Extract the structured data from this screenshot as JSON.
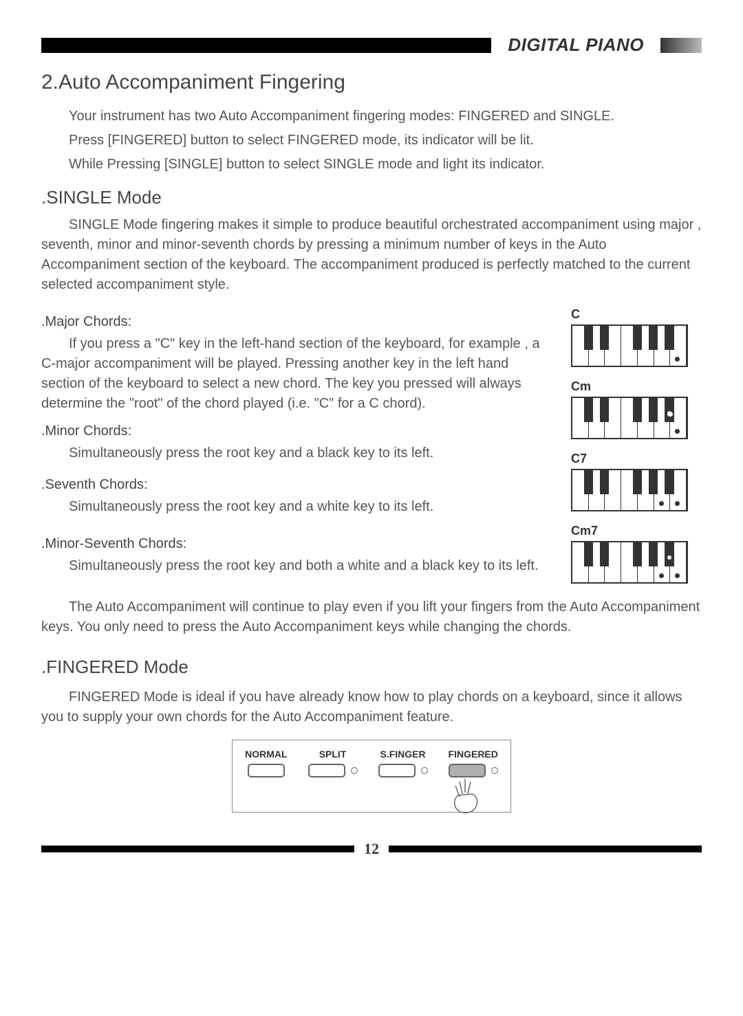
{
  "header": {
    "title": "DIGITAL PIANO"
  },
  "headings": {
    "main": "2.Auto Accompaniment Fingering",
    "single": ".SINGLE Mode",
    "fingered": ".FINGERED Mode",
    "major": ".Major Chords:",
    "minor": ".Minor Chords:",
    "seventh": ".Seventh Chords:",
    "minor7": ".Minor-Seventh Chords:"
  },
  "intro": {
    "p1": "Your instrument has two Auto Accompaniment fingering modes: FINGERED and SINGLE.",
    "p2": "Press [FINGERED] button to select FINGERED mode, its indicator will be lit.",
    "p3": "While Pressing [SINGLE] button to select SINGLE mode and light its indicator."
  },
  "single_intro": "SINGLE Mode fingering makes it simple to produce beautiful orchestrated accompaniment using major , seventh, minor and minor-seventh chords by pressing a minimum number of keys in the Auto Accompaniment section of the keyboard. The accompaniment produced is perfectly matched to the current selected accompaniment style.",
  "major_text": "If you press a \"C\" key in the left-hand section of the keyboard, for example , a C-major accompaniment will be played. Pressing another key in the left hand section of the keyboard to select a new chord. The key you pressed will always determine the \"root\" of the chord played (i.e. \"C\" for a C chord).",
  "minor_text": "Simultaneously press the root key and a black key to its left.",
  "seventh_text": "Simultaneously press the root key and a white key to its left.",
  "minor7_text": "Simultaneously press the root key and both a white and a black key to its left.",
  "continue_text": "The Auto Accompaniment will continue to play even if you lift your  fingers from the Auto Accompaniment keys. You only need to press the Auto Accompaniment keys while changing the chords.",
  "fingered_text": "FINGERED Mode is ideal if you have already know how to play chords on a keyboard, since it allows you to supply your own chords for the Auto Accompaniment feature.",
  "kbd_labels": {
    "c": "C",
    "cm": "Cm",
    "c7": "C7",
    "cm7": "Cm7"
  },
  "panel": {
    "labels": [
      "NORMAL",
      "SPLIT",
      "S.FINGER",
      "FINGERED"
    ],
    "pressed_index": 3,
    "led_from_index": 1
  },
  "page_number": "12"
}
